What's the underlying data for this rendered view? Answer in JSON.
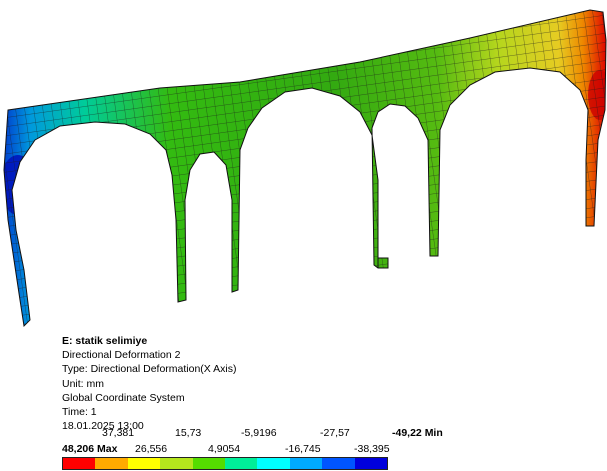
{
  "result": {
    "title": "E: statik selimiye",
    "name": "Directional Deformation 2",
    "type": "Type: Directional Deformation(X Axis)",
    "unit": "Unit: mm",
    "coordinate_system": "Global Coordinate System",
    "time": "Time: 1",
    "date": "18.01.2025 13:00"
  },
  "legend": {
    "max_label": "48,206 Max",
    "min_label": "-49,22 Min",
    "upper_labels": [
      "37,381",
      "15,73",
      "-5,9196",
      "-27,57"
    ],
    "lower_labels": [
      "26,556",
      "4,9054",
      "-16,745",
      "-38,395"
    ],
    "colors": [
      "#ff0000",
      "#ffaa00",
      "#ffff00",
      "#b5e61d",
      "#55dd00",
      "#00ee99",
      "#00ffff",
      "#00aaff",
      "#0055ff",
      "#0000dd"
    ]
  },
  "model": {
    "mesh_color": "#1a1a1a"
  }
}
